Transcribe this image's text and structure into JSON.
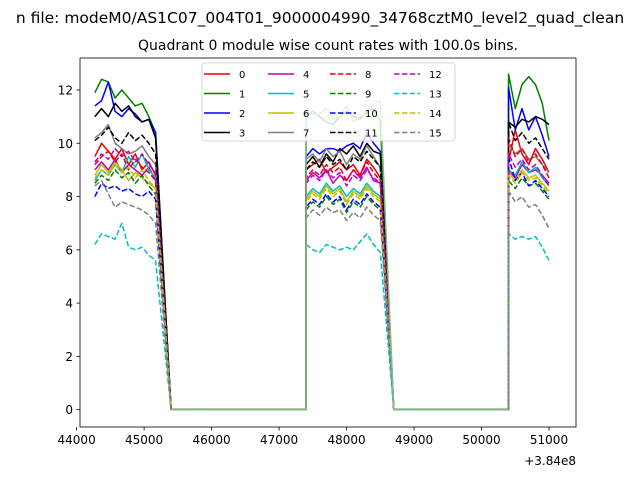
{
  "chart_data": {
    "type": "line",
    "suptitle": "n file: modeM0/AS1C07_004T01_9000004990_34768cztM0_level2_quad_clean",
    "title": "Quadrant 0 module wise count rates with 100.0s bins.",
    "xlabel": "",
    "ylabel": "",
    "offset_text": "+3.84e8",
    "xlim": [
      44050,
      51400
    ],
    "ylim": [
      -0.65,
      13.2
    ],
    "xticks": [
      44000,
      45000,
      46000,
      47000,
      48000,
      49000,
      50000,
      51000
    ],
    "xtick_labels": [
      "44000",
      "45000",
      "46000",
      "47000",
      "48000",
      "49000",
      "50000",
      "51000"
    ],
    "yticks": [
      0,
      2,
      4,
      6,
      8,
      10,
      12
    ],
    "ytick_labels": [
      "0",
      "2",
      "4",
      "6",
      "8",
      "10",
      "12"
    ],
    "grid": false,
    "legend_position": "upper-center",
    "segments": [
      {
        "x_start": 44270,
        "bins": 10,
        "step": 100,
        "drop_to": 45400
      },
      {
        "x_start": 47400,
        "bins": 12,
        "step": 100,
        "drop_to": 48700
      },
      {
        "x_start": 50400,
        "bins": 7,
        "step": 100
      }
    ],
    "zero_intervals": [
      [
        45400,
        47400
      ],
      [
        48700,
        50400
      ]
    ],
    "series": [
      {
        "name": "0",
        "color": "#e8000b",
        "dash": "solid",
        "segments": [
          [
            9.5,
            10.0,
            9.7,
            9.4,
            9.8,
            9.2,
            9.6,
            9.0,
            9.3,
            8.8
          ],
          [
            9.0,
            9.2,
            9.4,
            8.9,
            9.1,
            9.3,
            9.0,
            9.2,
            8.8,
            9.4,
            9.1,
            8.7
          ],
          [
            9.3,
            10.5,
            9.6,
            9.2,
            9.8,
            9.4,
            8.9
          ]
        ]
      },
      {
        "name": "1",
        "color": "#008000",
        "dash": "solid",
        "segments": [
          [
            11.9,
            12.4,
            12.3,
            11.7,
            12.0,
            11.7,
            11.4,
            11.5,
            11.0,
            10.4
          ],
          [
            11.1,
            11.2,
            11.0,
            10.8,
            10.7,
            11.0,
            11.2,
            11.0,
            10.9,
            11.2,
            11.3,
            10.8
          ],
          [
            12.6,
            11.3,
            12.2,
            12.5,
            12.2,
            11.5,
            10.1
          ]
        ]
      },
      {
        "name": "2",
        "color": "#0000ff",
        "dash": "solid",
        "segments": [
          [
            11.4,
            11.6,
            12.3,
            11.2,
            11.0,
            11.3,
            11.1,
            10.8,
            10.9,
            10.4
          ],
          [
            9.5,
            9.8,
            9.6,
            9.8,
            9.8,
            9.7,
            9.9,
            10.0,
            9.8,
            10.4,
            10.0,
            9.7
          ],
          [
            12.1,
            10.5,
            11.3,
            10.5,
            11.0,
            10.3,
            9.5
          ]
        ]
      },
      {
        "name": "3",
        "color": "#000000",
        "dash": "solid",
        "segments": [
          [
            11.0,
            11.3,
            11.0,
            11.5,
            11.2,
            11.4,
            11.0,
            10.8,
            10.9,
            10.2
          ],
          [
            9.2,
            9.5,
            9.1,
            9.6,
            9.3,
            9.8,
            9.6,
            9.9,
            9.5,
            10.0,
            9.7,
            9.6
          ],
          [
            10.8,
            10.6,
            10.9,
            10.8,
            11.0,
            10.9,
            10.7
          ]
        ]
      },
      {
        "name": "4",
        "color": "#bf00bf",
        "dash": "solid",
        "segments": [
          [
            9.0,
            9.3,
            9.0,
            9.4,
            8.9,
            9.2,
            9.0,
            8.8,
            9.1,
            8.6
          ],
          [
            8.6,
            8.9,
            8.7,
            9.0,
            8.5,
            8.8,
            8.6,
            9.0,
            8.7,
            9.1,
            8.6,
            8.5
          ],
          [
            9.0,
            8.7,
            9.2,
            8.9,
            9.0,
            8.8,
            8.5
          ]
        ]
      },
      {
        "name": "5",
        "color": "#00bfbf",
        "dash": "solid",
        "segments": [
          [
            8.6,
            9.0,
            8.8,
            9.2,
            8.9,
            9.5,
            9.1,
            9.6,
            9.0,
            8.7
          ],
          [
            8.0,
            8.3,
            8.1,
            8.5,
            8.2,
            8.4,
            8.0,
            8.3,
            8.1,
            8.5,
            8.2,
            8.0
          ],
          [
            9.0,
            8.8,
            9.3,
            8.9,
            9.1,
            8.7,
            8.4
          ]
        ]
      },
      {
        "name": "6",
        "color": "#bfbf00",
        "dash": "solid",
        "segments": [
          [
            8.8,
            9.2,
            8.9,
            9.3,
            9.0,
            8.6,
            8.9,
            8.7,
            8.5,
            8.3
          ],
          [
            7.9,
            8.2,
            8.0,
            8.4,
            8.1,
            8.3,
            7.8,
            8.2,
            8.0,
            8.4,
            8.1,
            7.9
          ],
          [
            8.9,
            8.6,
            9.0,
            8.7,
            8.8,
            8.5,
            8.2
          ]
        ]
      },
      {
        "name": "7",
        "color": "#808080",
        "dash": "solid",
        "segments": [
          [
            10.2,
            10.4,
            10.7,
            10.0,
            9.8,
            9.6,
            9.7,
            9.9,
            9.5,
            9.2
          ],
          [
            9.4,
            9.6,
            9.3,
            9.8,
            9.5,
            9.7,
            9.2,
            9.6,
            9.4,
            9.9,
            9.5,
            9.1
          ],
          [
            10.0,
            9.6,
            9.8,
            9.4,
            9.5,
            9.2,
            8.9
          ]
        ]
      },
      {
        "name": "8",
        "color": "#e8000b",
        "dash": "dashed",
        "segments": [
          [
            9.2,
            9.5,
            9.7,
            9.3,
            9.6,
            9.0,
            9.4,
            9.1,
            8.9,
            8.6
          ],
          [
            8.7,
            9.0,
            8.8,
            9.2,
            8.9,
            9.1,
            8.6,
            9.0,
            8.8,
            9.3,
            8.9,
            8.6
          ],
          [
            10.2,
            9.5,
            9.8,
            9.3,
            9.6,
            9.2,
            8.7
          ]
        ]
      },
      {
        "name": "9",
        "color": "#008000",
        "dash": "dashed",
        "segments": [
          [
            8.5,
            8.8,
            8.6,
            9.0,
            8.7,
            8.9,
            8.5,
            8.8,
            8.4,
            8.1
          ],
          [
            7.5,
            7.8,
            7.6,
            8.0,
            7.7,
            7.9,
            7.4,
            7.8,
            7.6,
            8.0,
            7.7,
            7.5
          ],
          [
            8.6,
            8.3,
            8.7,
            8.4,
            8.5,
            8.2,
            7.9
          ]
        ]
      },
      {
        "name": "10",
        "color": "#0000ff",
        "dash": "dashed",
        "segments": [
          [
            8.0,
            8.5,
            8.3,
            8.4,
            8.2,
            8.3,
            8.1,
            8.0,
            8.2,
            7.9
          ],
          [
            7.6,
            7.9,
            7.7,
            8.1,
            7.8,
            8.0,
            7.5,
            7.9,
            7.7,
            8.1,
            7.8,
            7.6
          ],
          [
            9.5,
            8.6,
            8.9,
            8.4,
            8.6,
            8.3,
            8.0
          ]
        ]
      },
      {
        "name": "11",
        "color": "#000000",
        "dash": "dashed",
        "segments": [
          [
            10.1,
            10.3,
            10.6,
            10.2,
            10.0,
            10.4,
            10.1,
            10.3,
            10.0,
            9.6
          ],
          [
            9.0,
            9.3,
            9.1,
            9.5,
            9.2,
            9.4,
            9.0,
            9.5,
            9.3,
            9.7,
            9.4,
            9.1
          ],
          [
            10.8,
            10.1,
            10.4,
            10.0,
            10.2,
            9.8,
            9.4
          ]
        ]
      },
      {
        "name": "12",
        "color": "#bf00bf",
        "dash": "dashed",
        "segments": [
          [
            9.3,
            9.6,
            9.4,
            9.8,
            9.5,
            9.7,
            9.3,
            9.6,
            9.2,
            8.9
          ],
          [
            8.5,
            8.8,
            8.6,
            9.0,
            8.7,
            8.9,
            8.4,
            8.8,
            8.6,
            9.0,
            8.7,
            8.5
          ],
          [
            9.6,
            9.1,
            9.4,
            9.0,
            9.2,
            8.8,
            8.4
          ]
        ]
      },
      {
        "name": "13",
        "color": "#00bfbf",
        "dash": "dashed",
        "segments": [
          [
            6.2,
            6.6,
            6.5,
            6.4,
            7.0,
            6.1,
            6.0,
            6.1,
            5.8,
            5.6
          ],
          [
            6.2,
            6.0,
            5.9,
            6.2,
            6.1,
            6.0,
            6.1,
            6.0,
            6.3,
            6.6,
            6.2,
            5.9
          ],
          [
            6.6,
            6.4,
            6.5,
            6.4,
            6.5,
            6.1,
            5.6
          ]
        ]
      },
      {
        "name": "14",
        "color": "#bfbf00",
        "dash": "dashed",
        "segments": [
          [
            8.7,
            9.0,
            8.8,
            9.2,
            8.9,
            9.1,
            8.7,
            9.0,
            8.6,
            8.3
          ],
          [
            7.8,
            8.1,
            7.9,
            8.3,
            8.0,
            8.2,
            7.7,
            8.1,
            7.9,
            8.3,
            8.0,
            7.8
          ],
          [
            8.8,
            8.5,
            8.9,
            8.6,
            8.7,
            8.4,
            8.1
          ]
        ]
      },
      {
        "name": "15",
        "color": "#808080",
        "dash": "dashed",
        "segments": [
          [
            8.4,
            8.6,
            8.1,
            7.6,
            7.8,
            7.7,
            7.6,
            7.5,
            7.3,
            7.0
          ],
          [
            7.2,
            7.5,
            7.3,
            7.6,
            7.4,
            7.5,
            7.1,
            7.4,
            7.2,
            7.6,
            7.3,
            7.1
          ],
          [
            8.2,
            7.8,
            8.0,
            7.6,
            7.7,
            7.3,
            6.8
          ]
        ]
      },
      {
        "name": "",
        "color": "#7fbf7f",
        "dash": "solid",
        "legend": false,
        "segments": [
          [],
          [
            11.2,
            11.1,
            11.1,
            11.3,
            10.9,
            11.0,
            11.4,
            10.8,
            11.0,
            11.1,
            11.5,
            11.6
          ],
          []
        ]
      }
    ]
  }
}
